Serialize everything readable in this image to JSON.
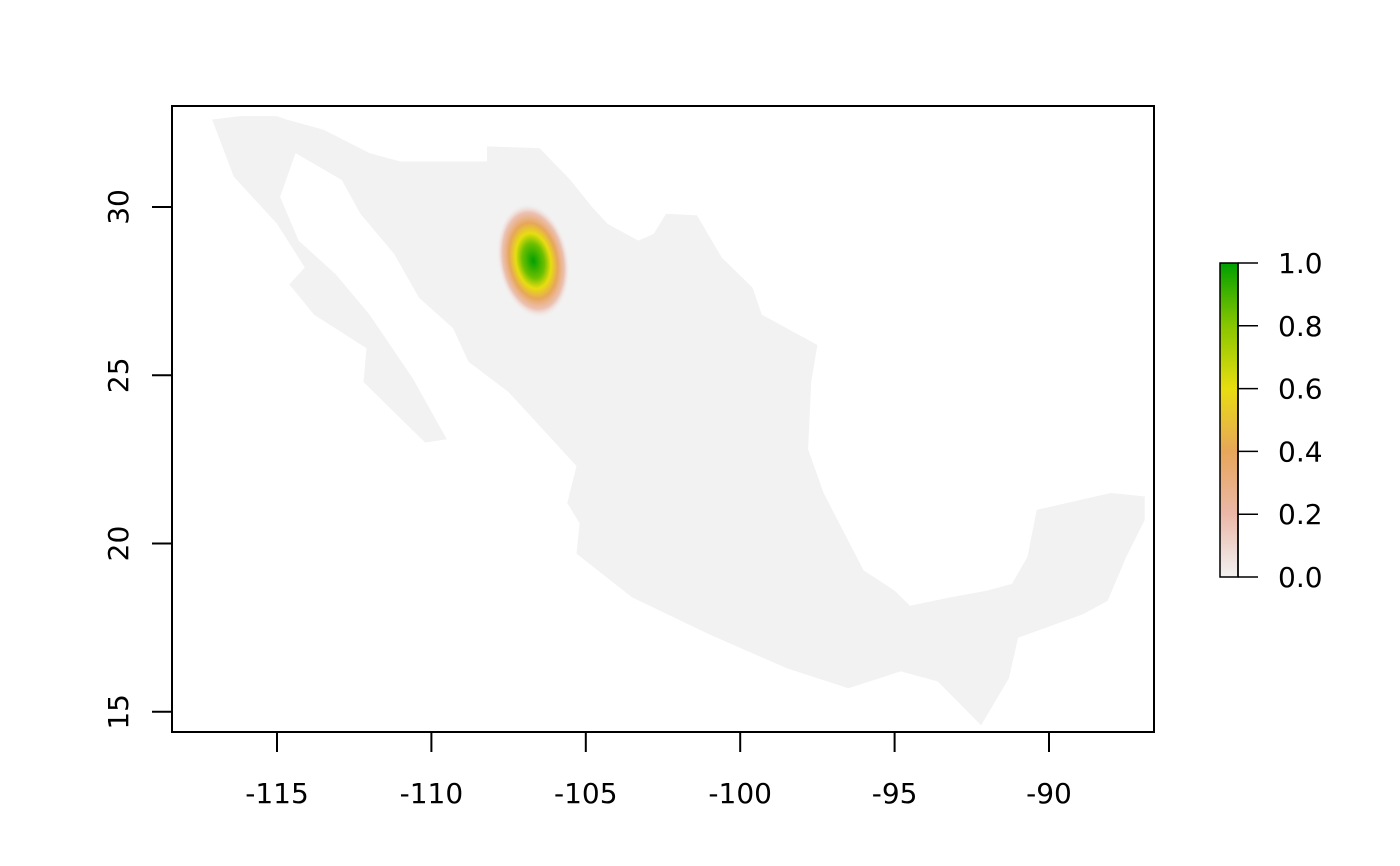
{
  "chart_data": {
    "type": "heatmap",
    "title": "",
    "xlabel": "",
    "ylabel": "",
    "xlim": [
      -118.4,
      -86.6
    ],
    "ylim": [
      14.4,
      33.0
    ],
    "x_ticks": [
      {
        "value": -115,
        "label": "-115"
      },
      {
        "value": -110,
        "label": "-110"
      },
      {
        "value": -105,
        "label": "-105"
      },
      {
        "value": -100,
        "label": "-100"
      },
      {
        "value": -95,
        "label": "-95"
      },
      {
        "value": -90,
        "label": "-90"
      }
    ],
    "y_ticks": [
      {
        "value": 15,
        "label": "15"
      },
      {
        "value": 20,
        "label": "20"
      },
      {
        "value": 25,
        "label": "25"
      },
      {
        "value": 30,
        "label": "30"
      }
    ],
    "grid": false,
    "background_value_color": "#f2f2f2",
    "region_outline_lonlat": [
      [
        -117.1,
        32.6
      ],
      [
        -116.2,
        32.7
      ],
      [
        -115.0,
        32.7
      ],
      [
        -114.7,
        32.6
      ],
      [
        -113.5,
        32.3
      ],
      [
        -112.0,
        31.6
      ],
      [
        -111.0,
        31.35
      ],
      [
        -108.2,
        31.35
      ],
      [
        -108.2,
        31.8
      ],
      [
        -106.5,
        31.75
      ],
      [
        -105.5,
        30.8
      ],
      [
        -104.8,
        30.0
      ],
      [
        -104.3,
        29.5
      ],
      [
        -103.3,
        29.0
      ],
      [
        -102.8,
        29.2
      ],
      [
        -102.4,
        29.8
      ],
      [
        -101.4,
        29.75
      ],
      [
        -100.6,
        28.5
      ],
      [
        -99.6,
        27.6
      ],
      [
        -99.3,
        26.8
      ],
      [
        -97.5,
        25.9
      ],
      [
        -97.7,
        24.8
      ],
      [
        -97.8,
        22.8
      ],
      [
        -97.3,
        21.5
      ],
      [
        -96.4,
        19.9
      ],
      [
        -96.0,
        19.2
      ],
      [
        -95.0,
        18.6
      ],
      [
        -94.5,
        18.15
      ],
      [
        -93.2,
        18.4
      ],
      [
        -92.0,
        18.6
      ],
      [
        -91.2,
        18.8
      ],
      [
        -90.7,
        19.6
      ],
      [
        -90.4,
        21.0
      ],
      [
        -88.0,
        21.5
      ],
      [
        -86.9,
        21.4
      ],
      [
        -86.9,
        20.7
      ],
      [
        -87.5,
        19.6
      ],
      [
        -88.1,
        18.3
      ],
      [
        -88.9,
        17.9
      ],
      [
        -91.0,
        17.2
      ],
      [
        -91.3,
        16.0
      ],
      [
        -92.2,
        14.6
      ],
      [
        -93.6,
        15.9
      ],
      [
        -94.8,
        16.2
      ],
      [
        -96.5,
        15.7
      ],
      [
        -98.5,
        16.3
      ],
      [
        -101.0,
        17.3
      ],
      [
        -103.5,
        18.4
      ],
      [
        -105.3,
        19.7
      ],
      [
        -105.2,
        20.6
      ],
      [
        -105.6,
        21.2
      ],
      [
        -105.3,
        22.3
      ],
      [
        -106.2,
        23.2
      ],
      [
        -107.5,
        24.5
      ],
      [
        -108.8,
        25.4
      ],
      [
        -109.3,
        26.4
      ],
      [
        -110.4,
        27.3
      ],
      [
        -111.2,
        28.6
      ],
      [
        -112.3,
        29.8
      ],
      [
        -112.9,
        30.8
      ],
      [
        -114.4,
        31.6
      ],
      [
        -114.9,
        30.3
      ],
      [
        -114.3,
        29.0
      ],
      [
        -113.1,
        28.0
      ],
      [
        -112.0,
        26.8
      ],
      [
        -110.6,
        24.9
      ],
      [
        -109.5,
        23.1
      ],
      [
        -110.2,
        23.0
      ],
      [
        -112.2,
        24.8
      ],
      [
        -112.1,
        25.8
      ],
      [
        -113.8,
        26.8
      ],
      [
        -114.6,
        27.7
      ],
      [
        -114.1,
        28.2
      ],
      [
        -115.0,
        29.5
      ],
      [
        -116.4,
        30.9
      ]
    ],
    "hotspot": {
      "lon": -106.7,
      "lat": 28.4,
      "peak_value": 1.0
    },
    "legend": {
      "position": "right",
      "min": 0.0,
      "max": 1.0,
      "labels": [
        "1.0",
        "0.8",
        "0.6",
        "0.4",
        "0.2",
        "0.0"
      ],
      "colors": [
        "#f2f2f2",
        "#ebb8a8",
        "#e7a65a",
        "#e8dd10",
        "#88c600",
        "#00a000"
      ]
    }
  }
}
